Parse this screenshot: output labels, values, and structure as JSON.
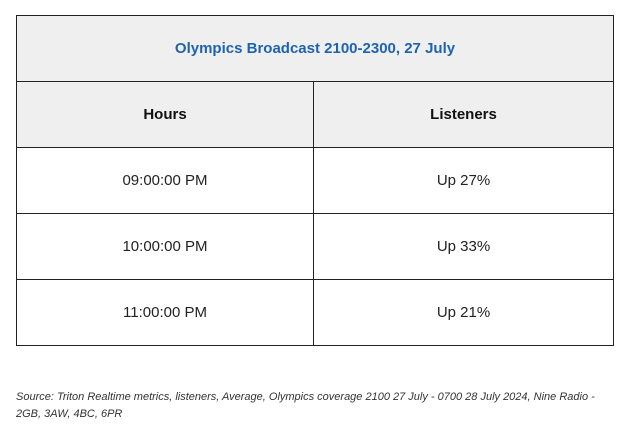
{
  "table": {
    "title": "Olympics Broadcast 2100-2300, 27 July",
    "headers": [
      "Hours",
      "Listeners"
    ],
    "rows": [
      [
        "09:00:00 PM",
        "Up 27%"
      ],
      [
        "10:00:00 PM",
        "Up 33%"
      ],
      [
        "11:00:00 PM",
        "Up 21%"
      ]
    ]
  },
  "footer": {
    "source": "Source: Triton Realtime metrics, listeners, Average, Olympics coverage 2100 27 July - 0700 28 July 2024, Nine Radio - 2GB, 3AW, 4BC, 6PR"
  },
  "colors": {
    "title_text": "#1f63b0",
    "header_bg": "#efefef",
    "border": "#222222"
  }
}
